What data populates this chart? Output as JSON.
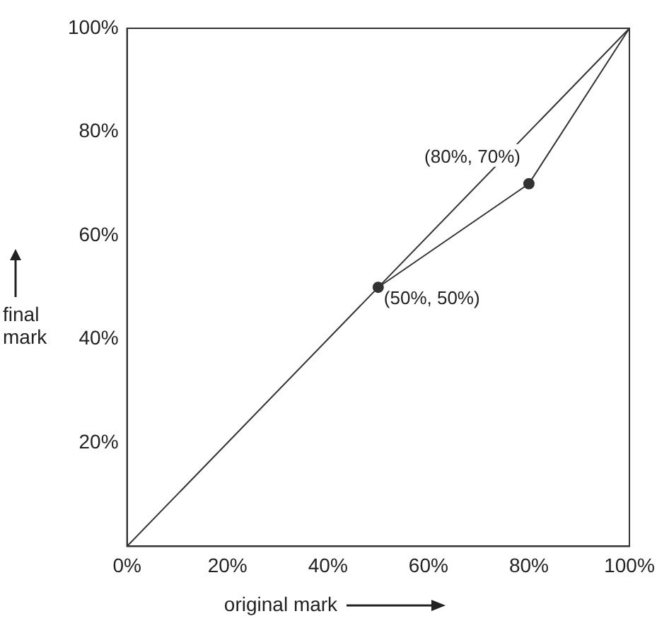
{
  "chart_data": {
    "type": "line",
    "xlabel": "original mark",
    "ylabel": "final mark",
    "xlim": [
      0,
      100
    ],
    "ylim": [
      0,
      100
    ],
    "xticks": [
      {
        "value": 0,
        "label": "0%"
      },
      {
        "value": 20,
        "label": "20%"
      },
      {
        "value": 40,
        "label": "40%"
      },
      {
        "value": 60,
        "label": "60%"
      },
      {
        "value": 80,
        "label": "80%"
      },
      {
        "value": 100,
        "label": "100%"
      }
    ],
    "yticks": [
      {
        "value": 0,
        "label": null
      },
      {
        "value": 20,
        "label": "20%"
      },
      {
        "value": 40,
        "label": "40%"
      },
      {
        "value": 60,
        "label": "60%"
      },
      {
        "value": 80,
        "label": "80%"
      },
      {
        "value": 100,
        "label": "100%"
      }
    ],
    "series": [
      {
        "color": "#333333",
        "x": [
          0,
          100
        ],
        "values": [
          0,
          100
        ],
        "marker": "none"
      },
      {
        "color": "#333333",
        "x": [
          50,
          80,
          100
        ],
        "values": [
          50,
          70,
          100
        ],
        "marker": "none"
      },
      {
        "type": "scatter",
        "color": "#333333",
        "x": [
          50,
          80
        ],
        "values": [
          50,
          70
        ],
        "marker": "circle"
      }
    ],
    "annotations": [
      {
        "text": "(80%, 70%)",
        "x": 80,
        "y": 70
      },
      {
        "text": "(50%, 50%)",
        "x": 50,
        "y": 50
      }
    ],
    "grid": false,
    "legend": false
  }
}
